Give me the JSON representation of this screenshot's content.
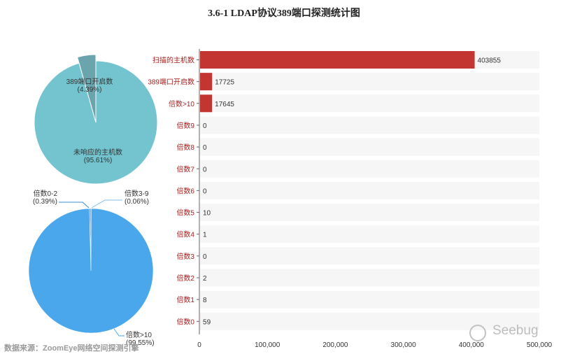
{
  "title": "3.6-1 LDAP协议389端口探测统计图",
  "source_note": "数据来源：ZoomEye网络空间探测引擎",
  "watermark": "Seebug",
  "chart_data": [
    {
      "type": "pie",
      "slices": [
        {
          "label": "389端口开启数",
          "percent_label": "(4.39%)",
          "value": 4.39,
          "color": "#6aa5ae"
        },
        {
          "label": "未响应的主机数",
          "percent_label": "(95.61%)",
          "value": 95.61,
          "color": "#74c4cf"
        }
      ]
    },
    {
      "type": "pie",
      "slices": [
        {
          "label": "倍数0-2",
          "percent_label": "(0.39%)",
          "value": 0.39,
          "color": "#3a8fd6"
        },
        {
          "label": "倍数3-9",
          "percent_label": "(0.06%)",
          "value": 0.06,
          "color": "#7fbfee"
        },
        {
          "label": "倍数>10",
          "percent_label": "(99.55%)",
          "value": 99.55,
          "color": "#4aa7ec"
        }
      ]
    },
    {
      "type": "bar",
      "orientation": "horizontal",
      "categories": [
        "扫描的主机数",
        "389端口开启数",
        "倍数>10",
        "倍数9",
        "倍数8",
        "倍数7",
        "倍数6",
        "倍数5",
        "倍数4",
        "倍数3",
        "倍数2",
        "倍数1",
        "倍数0"
      ],
      "values": [
        403855,
        17725,
        17645,
        0,
        0,
        0,
        0,
        10,
        1,
        0,
        2,
        8,
        59
      ],
      "value_labels": [
        "403855",
        "17725",
        "17645",
        "0",
        "0",
        "0",
        "0",
        "10",
        "1",
        "0",
        "2",
        "8",
        "59"
      ],
      "xlim": [
        0,
        500000
      ],
      "xticks": [
        0,
        100000,
        200000,
        300000,
        400000,
        500000
      ],
      "xtick_labels": [
        "0",
        "100,000",
        "200,000",
        "300,000",
        "400,000",
        "500,000"
      ],
      "bar_color": "#c23531",
      "label_color": "#a81f1f",
      "track_color": "#f6f6f6"
    }
  ]
}
